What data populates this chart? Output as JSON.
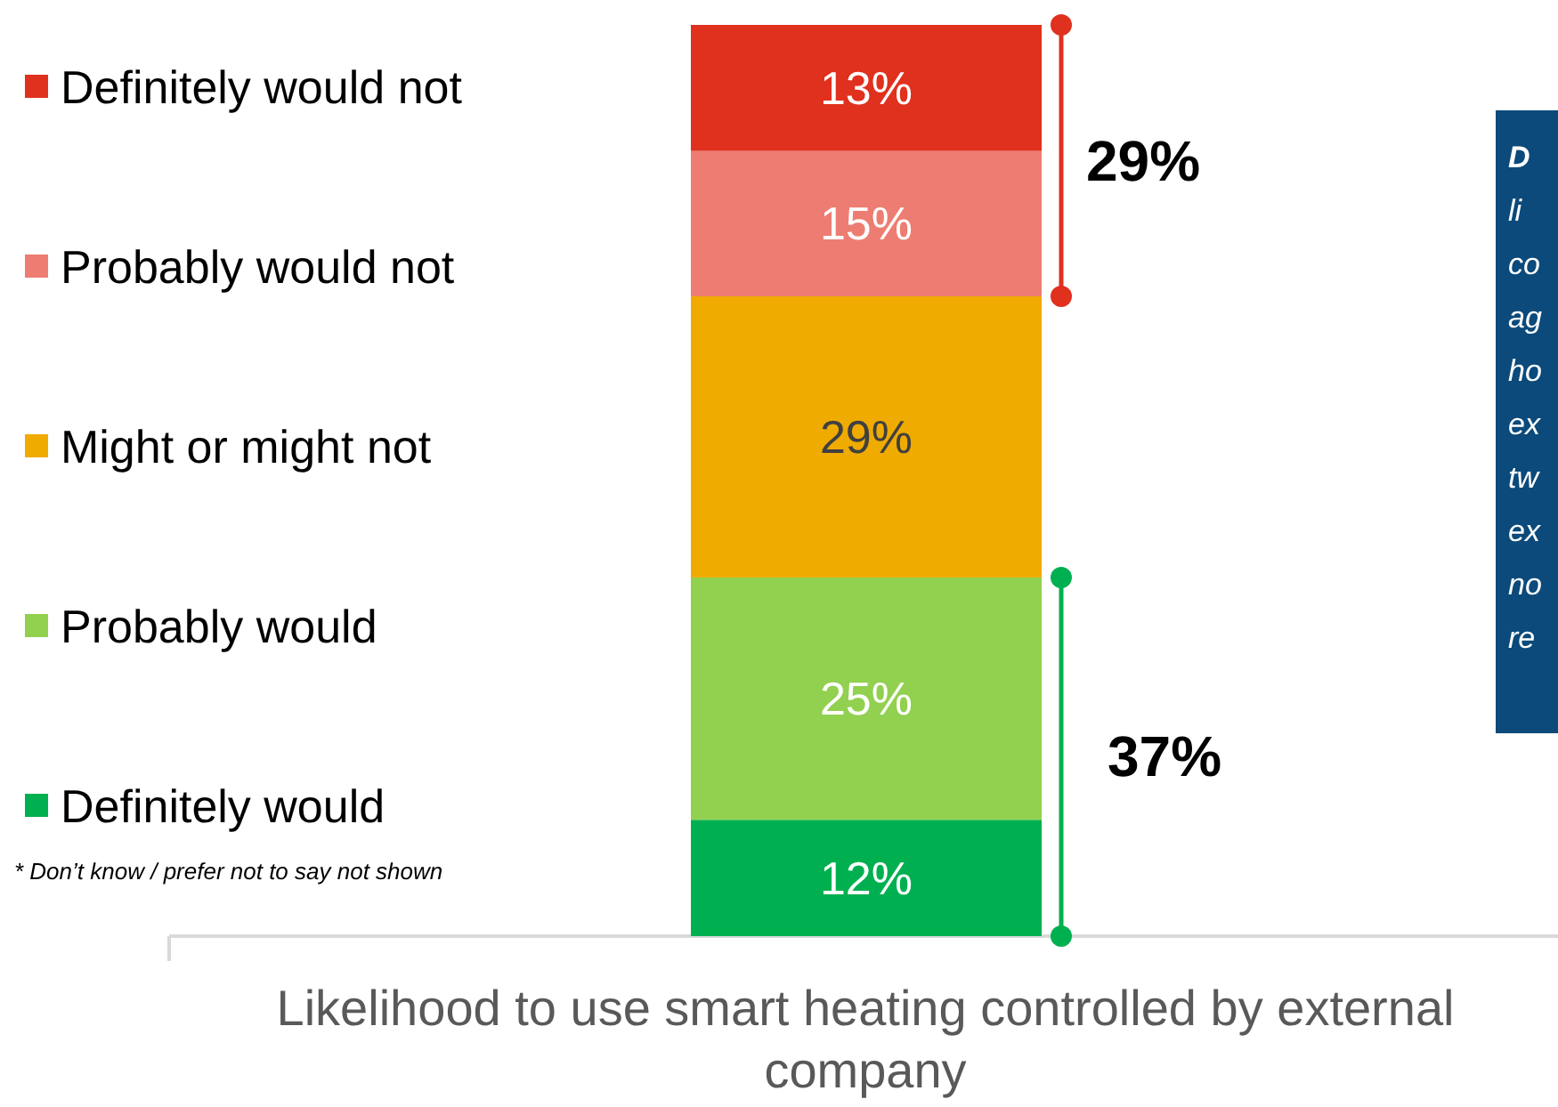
{
  "chart_data": {
    "type": "bar",
    "stacked": true,
    "categories": [
      null
    ],
    "xlabel": "Likelihood to use smart heating controlled by external company",
    "ylim": [
      0,
      94
    ],
    "legend": "left",
    "series": [
      {
        "name": "Definitely would",
        "color": "#00b050",
        "values": [
          12
        ],
        "value_labels": [
          "12%"
        ]
      },
      {
        "name": "Probably would",
        "color": "#92d050",
        "values": [
          25
        ],
        "value_labels": [
          "25%"
        ]
      },
      {
        "name": "Might or might not",
        "color": "#f0ab00",
        "values": [
          29
        ],
        "value_labels": [
          "29%"
        ]
      },
      {
        "name": "Probably would not",
        "color": "#ed7d72",
        "values": [
          15
        ],
        "value_labels": [
          "15%"
        ]
      },
      {
        "name": "Definitely would not",
        "color": "#e0301e",
        "values": [
          13
        ],
        "value_labels": [
          "13%"
        ]
      }
    ],
    "annotations": [
      "29%",
      "37%",
      "* Don’t know / prefer not to say not shown",
      "D",
      "li",
      "co",
      "ag",
      "ho",
      "ex",
      "tw",
      "ex",
      "no",
      "re"
    ]
  }
}
